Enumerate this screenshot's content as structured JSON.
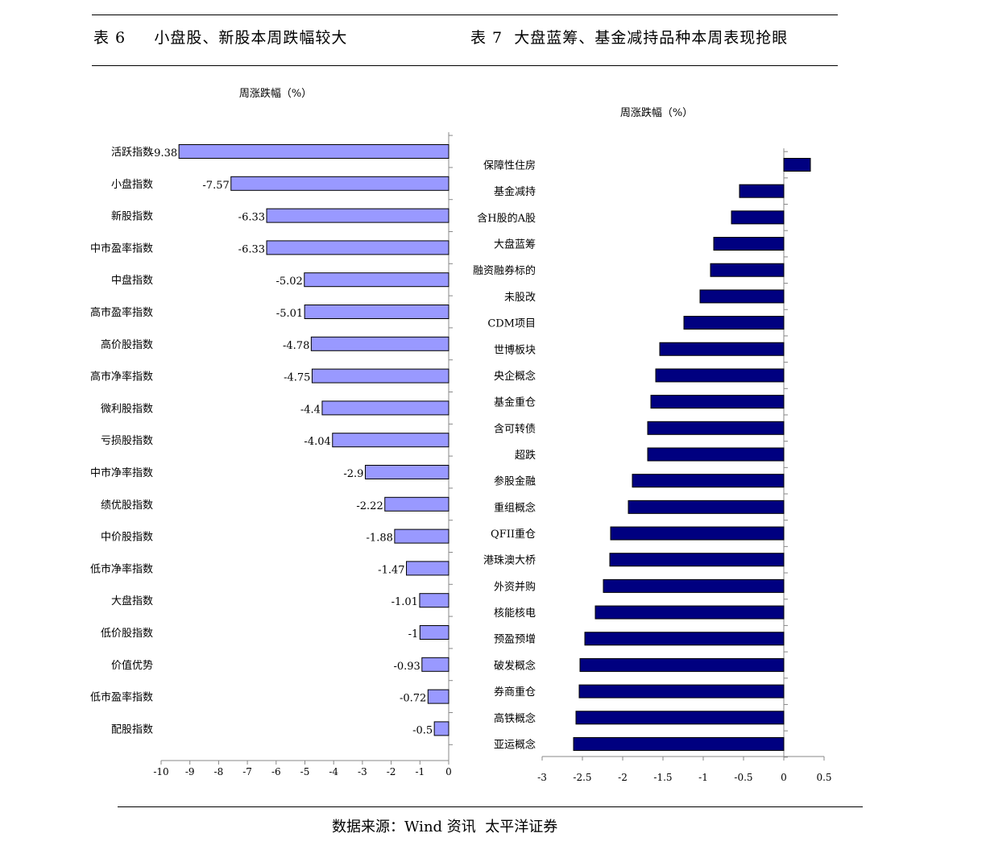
{
  "header": {
    "left_title": "表 6     小盘股、新股本周跌幅较大",
    "right_title": "表 7  大盘蓝筹、基金减持品种本周表现抢眼"
  },
  "source": "数据来源：Wind 资讯  太平洋证券",
  "chart_data": [
    {
      "type": "bar",
      "orientation": "horizontal",
      "title": "周涨跌幅（%）",
      "bar_color": "#9999ff",
      "categories": [
        "活跃指数",
        "小盘指数",
        "新股指数",
        "中市盈率指数",
        "中盘指数",
        "高市盈率指数",
        "高价股指数",
        "高市净率指数",
        "微利股指数",
        "亏损股指数",
        "中市净率指数",
        "绩优股指数",
        "中价股指数",
        "低市净率指数",
        "大盘指数",
        "低价股指数",
        "价值优势",
        "低市盈率指数",
        "配股指数"
      ],
      "values": [
        -9.38,
        -7.57,
        -6.33,
        -6.33,
        -5.02,
        -5.01,
        -4.78,
        -4.75,
        -4.4,
        -4.04,
        -2.9,
        -2.22,
        -1.88,
        -1.47,
        -1.01,
        -1,
        -0.93,
        -0.72,
        -0.5
      ],
      "value_labels": [
        "-9.38",
        "-7.57",
        "-6.33",
        "-6.33",
        "-5.02",
        "-5.01",
        "-4.78",
        "-4.75",
        "-4.4",
        "-4.04",
        "-2.9",
        "-2.22",
        "-1.88",
        "-1.47",
        "-1.01",
        "-1",
        "-0.93",
        "-0.72",
        "-0.5"
      ],
      "xlim": [
        -10,
        0
      ],
      "ticks": [
        -10,
        -9,
        -8,
        -7,
        -6,
        -5,
        -4,
        -3,
        -2,
        -1,
        0
      ],
      "tick_labels": [
        "-10",
        "-9",
        "-8",
        "-7",
        "-6",
        "-5",
        "-4",
        "-3",
        "-2",
        "-1",
        "0"
      ],
      "grid": false
    },
    {
      "type": "bar",
      "orientation": "horizontal",
      "title": "周涨跌幅（%）",
      "bar_color": "#000080",
      "categories": [
        "保障性住房",
        "基金减持",
        "含H股的A股",
        "大盘蓝筹",
        "融资融券标的",
        "未股改",
        "CDM项目",
        "世博板块",
        "央企概念",
        "基金重仓",
        "含可转债",
        "超跌",
        "参股金融",
        "重组概念",
        "QFII重仓",
        "港珠澳大桥",
        "外资并购",
        "核能核电",
        "预盈预增",
        "破发概念",
        "券商重仓",
        "高铁概念",
        "亚运概念"
      ],
      "values": [
        0.33,
        -0.55,
        -0.65,
        -0.87,
        -0.91,
        -1.04,
        -1.24,
        -1.54,
        -1.59,
        -1.65,
        -1.69,
        -1.69,
        -1.88,
        -1.93,
        -2.15,
        -2.16,
        -2.24,
        -2.34,
        -2.47,
        -2.53,
        -2.54,
        -2.58,
        -2.61
      ],
      "xlim": [
        -3,
        0.5
      ],
      "ticks": [
        -3,
        -2.5,
        -2,
        -1.5,
        -1,
        -0.5,
        0,
        0.5
      ],
      "tick_labels": [
        "-3",
        "-2.5",
        "-2",
        "-1.5",
        "-1",
        "-0.5",
        "0",
        "0.5"
      ],
      "grid": false
    }
  ]
}
